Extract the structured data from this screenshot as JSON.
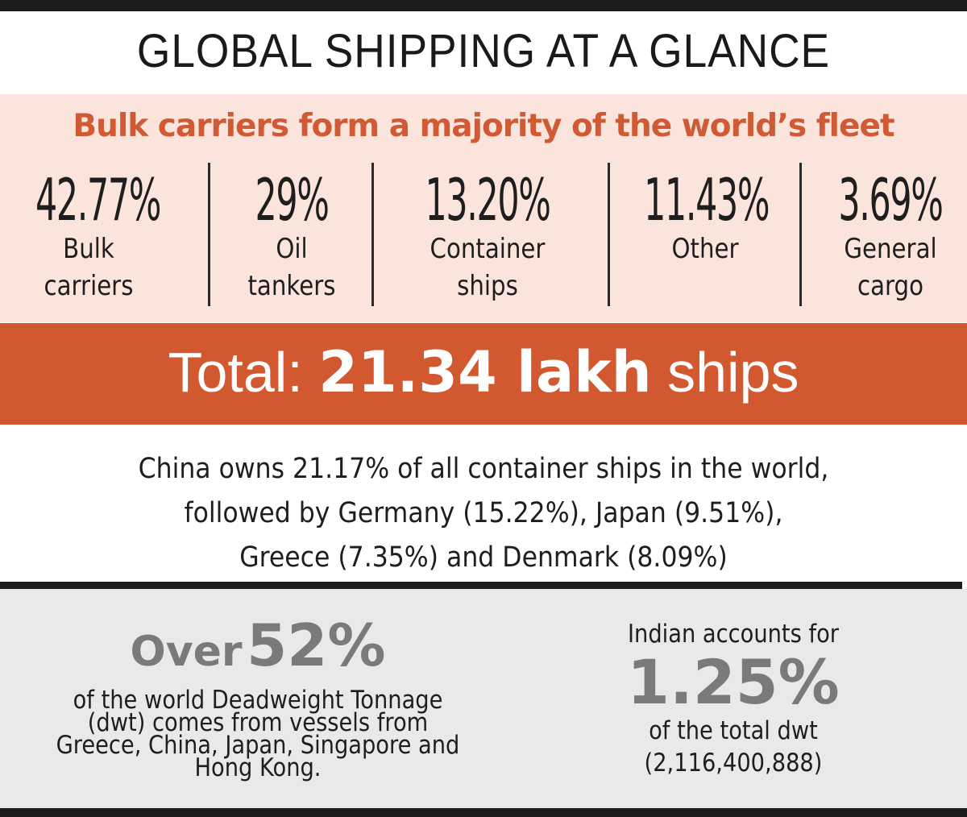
{
  "title": "GLOBAL SHIPPING AT A GLANCE",
  "fleet": {
    "heading": "Bulk carriers form a majority of the world’s fleet",
    "stats": [
      {
        "percent": "42.77%",
        "label_1": "Bulk",
        "label_2": "carriers"
      },
      {
        "percent": "29%",
        "label_1": "Oil",
        "label_2": "tankers"
      },
      {
        "percent": "13.20%",
        "label_1": "Container",
        "label_2": "ships"
      },
      {
        "percent": "11.43%",
        "label_1": "Other",
        "label_2": ""
      },
      {
        "percent": "3.69%",
        "label_1": "General",
        "label_2": "cargo"
      }
    ]
  },
  "total": {
    "prefix": "Total: ",
    "value": "21.34 lakh",
    "suffix": " ships"
  },
  "container_note": {
    "line_1": "China owns 21.17% of all container ships in the world,",
    "line_2": "followed by Germany (15.22%), Japan (9.51%),",
    "line_3": "Greece (7.35%) and Denmark (8.09%)"
  },
  "dwt": {
    "over_word": "Over",
    "over_value": "52%",
    "left_line_1": "of the world Deadweight Tonnage",
    "left_line_2": "(dwt) comes from vessels from",
    "left_line_3": "Greece, China, Japan, Singapore and",
    "left_line_4": "Hong Kong.",
    "right_line_1": "Indian accounts for",
    "right_value": "1.25%",
    "right_line_2": "of the total dwt",
    "right_line_3": "(2,116,400,888)"
  },
  "colors": {
    "accent": "#d2582f",
    "heading": "#d05a33",
    "fleet_bg": "#fae4dc",
    "dwt_bg": "#e9e9e9",
    "grey_text": "#7a7a7a"
  }
}
